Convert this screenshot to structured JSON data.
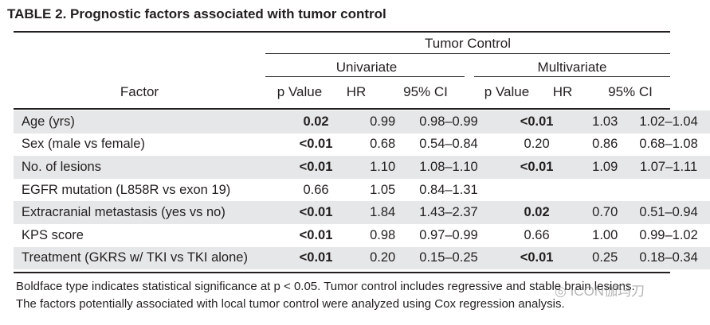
{
  "title": "TABLE 2. Prognostic factors associated with tumor control",
  "header": {
    "group": "Tumor Control",
    "univariate": "Univariate",
    "multivariate": "Multivariate",
    "factor": "Factor",
    "cols": [
      "p Value",
      "HR",
      "95% CI",
      "p Value",
      "HR",
      "95% CI"
    ]
  },
  "rows": [
    {
      "factor": "Age (yrs)",
      "cells": [
        "0.02",
        "0.99",
        "0.98–0.99",
        "<0.01",
        "1.03",
        "1.02–1.04"
      ]
    },
    {
      "factor": "Sex (male vs female)",
      "cells": [
        "<0.01",
        "0.68",
        "0.54–0.84",
        "0.20",
        "0.86",
        "0.68–1.08"
      ]
    },
    {
      "factor": "No. of lesions",
      "cells": [
        "<0.01",
        "1.10",
        "1.08–1.10",
        "<0.01",
        "1.09",
        "1.07–1.11"
      ]
    },
    {
      "factor": "EGFR mutation (L858R vs exon 19)",
      "cells": [
        "0.66",
        "1.05",
        "0.84–1.31",
        "",
        "",
        ""
      ]
    },
    {
      "factor": "Extracranial metastasis (yes vs no)",
      "cells": [
        "<0.01",
        "1.84",
        "1.43–2.37",
        "0.02",
        "0.70",
        "0.51–0.94"
      ]
    },
    {
      "factor": "KPS score",
      "cells": [
        "<0.01",
        "0.98",
        "0.97–0.99",
        "0.66",
        "1.00",
        "0.99–1.02"
      ]
    },
    {
      "factor": "Treatment (GKRS w/ TKI vs TKI alone)",
      "cells": [
        "<0.01",
        "0.20",
        "0.15–0.25",
        "<0.01",
        "0.25",
        "0.18–0.34"
      ]
    }
  ],
  "footnotes": [
    "Boldface type indicates statistical significance at p < 0.05. Tumor control includes regressive and stable brain lesions.",
    "The factors potentially associated with local tumor control were analyzed using Cox regression analysis."
  ],
  "watermark": "ICON伽玛刀"
}
